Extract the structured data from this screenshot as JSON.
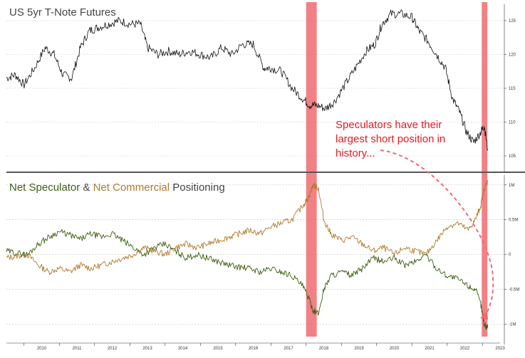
{
  "colors": {
    "price": "#111111",
    "speculator": "#3c5f12",
    "commercial": "#b07a2a",
    "highlight": "#f06a6e",
    "annotation": "#e8191f",
    "grid": "#c8c8c8",
    "divider": "#555555"
  },
  "chart_data": [
    {
      "type": "line",
      "title": "US 5yr T-Note Futures",
      "x_axis": {
        "ticks": [
          "2010",
          "2011",
          "2012",
          "2013",
          "2014",
          "2015",
          "2016",
          "2017",
          "2018",
          "2019",
          "2020",
          "2021",
          "2022",
          "2023"
        ]
      },
      "y_axis": {
        "side": "right",
        "ylim": [
          103,
          127
        ],
        "ticks": [
          105,
          110,
          115,
          120,
          125
        ],
        "tick_labels": [
          "105",
          "110",
          "115",
          "120",
          "125"
        ]
      },
      "series": [
        {
          "key": "price",
          "x": [
            2009.5,
            2009.75,
            2010.0,
            2010.3,
            2010.6,
            2010.85,
            2011.1,
            2011.35,
            2011.6,
            2011.85,
            2012.1,
            2012.4,
            2012.7,
            2013.0,
            2013.3,
            2013.5,
            2013.8,
            2014.1,
            2014.4,
            2014.7,
            2015.0,
            2015.3,
            2015.6,
            2015.9,
            2016.2,
            2016.5,
            2016.8,
            2017.0,
            2017.3,
            2017.6,
            2017.9,
            2018.1,
            2018.3,
            2018.55,
            2018.8,
            2019.1,
            2019.4,
            2019.7,
            2019.95,
            2020.15,
            2020.4,
            2020.7,
            2021.0,
            2021.2,
            2021.45,
            2021.7,
            2021.95,
            2022.15,
            2022.35,
            2022.55,
            2022.75,
            2022.95,
            2023.05,
            2023.15
          ],
          "y": [
            116.5,
            117,
            115.5,
            118,
            121,
            120,
            117,
            116.5,
            121,
            123.5,
            124,
            124.5,
            125,
            124.5,
            124.5,
            121,
            120,
            120.5,
            120,
            120.5,
            120,
            119.5,
            121,
            120,
            121.5,
            121.5,
            118,
            118,
            117.5,
            115,
            113.5,
            112.5,
            112.5,
            112,
            113,
            115.5,
            118,
            120.5,
            121.5,
            124.5,
            126,
            126,
            125.5,
            123.5,
            122,
            120,
            118,
            113.5,
            111.5,
            108.5,
            107,
            108.5,
            109.5,
            106
          ]
        }
      ]
    },
    {
      "type": "line",
      "title_parts": [
        "Net Speculator",
        " & ",
        "Net Commercial",
        " Positioning"
      ],
      "x_axis": {
        "ticks": [
          "2010",
          "2011",
          "2012",
          "2013",
          "2014",
          "2015",
          "2016",
          "2017",
          "2018",
          "2019",
          "2020",
          "2021",
          "2022",
          "2023"
        ]
      },
      "y_axis": {
        "side": "right",
        "ylim": [
          -1250000,
          1100000
        ],
        "ticks": [
          1000000,
          500000,
          0,
          -500000,
          -1000000
        ],
        "tick_labels": [
          "1M",
          "0.5M",
          "0",
          "-0.5M",
          "-1M"
        ]
      },
      "series": [
        {
          "key": "speculator",
          "name": "Net Speculator",
          "x": [
            2009.5,
            2009.8,
            2010.1,
            2010.4,
            2010.7,
            2011.0,
            2011.3,
            2011.6,
            2011.9,
            2012.2,
            2012.5,
            2012.8,
            2013.1,
            2013.4,
            2013.7,
            2014.0,
            2014.3,
            2014.6,
            2014.9,
            2015.2,
            2015.5,
            2015.8,
            2016.1,
            2016.4,
            2016.7,
            2017.0,
            2017.3,
            2017.6,
            2017.9,
            2018.05,
            2018.2,
            2018.35,
            2018.5,
            2018.7,
            2019.0,
            2019.3,
            2019.6,
            2019.9,
            2020.2,
            2020.5,
            2020.8,
            2021.1,
            2021.4,
            2021.7,
            2022.0,
            2022.3,
            2022.6,
            2022.8,
            2022.95,
            2023.05,
            2023.15
          ],
          "y": [
            50000,
            20000,
            0,
            150000,
            250000,
            330000,
            280000,
            220000,
            300000,
            250000,
            300000,
            200000,
            100000,
            0,
            100000,
            150000,
            50000,
            -50000,
            0,
            -50000,
            -100000,
            -150000,
            -180000,
            -200000,
            -250000,
            -200000,
            -250000,
            -300000,
            -450000,
            -600000,
            -800000,
            -850000,
            -500000,
            -300000,
            -250000,
            -300000,
            -200000,
            -50000,
            -100000,
            -50000,
            -150000,
            -100000,
            0,
            -200000,
            -300000,
            -350000,
            -450000,
            -500000,
            -700000,
            -1000000,
            -1050000
          ]
        },
        {
          "key": "commercial",
          "name": "Net Commercial",
          "x": [
            2009.5,
            2009.8,
            2010.1,
            2010.4,
            2010.7,
            2011.0,
            2011.3,
            2011.6,
            2011.9,
            2012.2,
            2012.5,
            2012.8,
            2013.1,
            2013.4,
            2013.7,
            2014.0,
            2014.3,
            2014.6,
            2014.9,
            2015.2,
            2015.5,
            2015.8,
            2016.1,
            2016.4,
            2016.7,
            2017.0,
            2017.3,
            2017.6,
            2017.9,
            2018.05,
            2018.2,
            2018.35,
            2018.5,
            2018.7,
            2019.0,
            2019.3,
            2019.6,
            2019.9,
            2020.2,
            2020.5,
            2020.8,
            2021.1,
            2021.4,
            2021.7,
            2022.0,
            2022.3,
            2022.6,
            2022.8,
            2022.95,
            2023.05,
            2023.15
          ],
          "y": [
            -50000,
            -20000,
            0,
            -150000,
            -250000,
            -200000,
            -250000,
            -150000,
            -200000,
            -150000,
            -100000,
            -50000,
            0,
            100000,
            50000,
            0,
            100000,
            150000,
            100000,
            150000,
            200000,
            250000,
            300000,
            350000,
            300000,
            400000,
            450000,
            500000,
            700000,
            800000,
            1000000,
            950000,
            500000,
            300000,
            200000,
            250000,
            150000,
            50000,
            100000,
            0,
            100000,
            50000,
            0,
            200000,
            400000,
            450000,
            350000,
            500000,
            700000,
            950000,
            1050000
          ]
        }
      ]
    }
  ],
  "annotation": {
    "lines": [
      "Speculators have their",
      "largest short position in",
      "history..."
    ]
  }
}
